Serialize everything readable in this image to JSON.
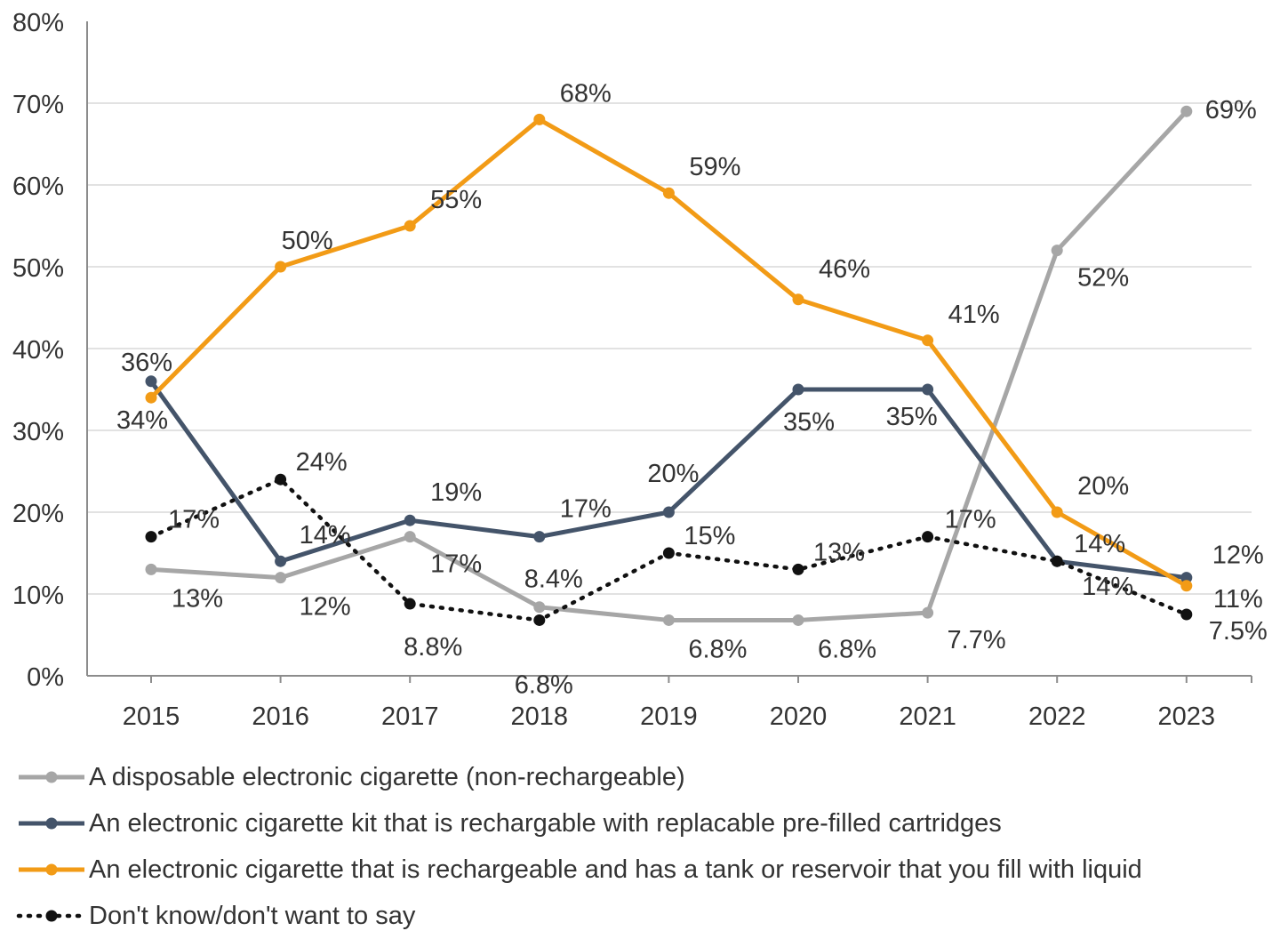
{
  "chart_data": {
    "type": "line",
    "categories": [
      "2015",
      "2016",
      "2017",
      "2018",
      "2019",
      "2020",
      "2021",
      "2022",
      "2023"
    ],
    "y_ticks": [
      "0%",
      "10%",
      "20%",
      "30%",
      "40%",
      "50%",
      "60%",
      "70%",
      "80%"
    ],
    "ylim": [
      0,
      80
    ],
    "grid": true,
    "legend_position": "bottom",
    "series": [
      {
        "name": "A disposable electronic cigarette (non-rechargeable)",
        "color": "#a6a6a6",
        "dash": "solid",
        "values": [
          13,
          12,
          17,
          8.4,
          6.8,
          6.8,
          7.7,
          52,
          69
        ],
        "labels": [
          "13%",
          "12%",
          "17%",
          "8.4%",
          "6.8%",
          "6.8%",
          "7.7%",
          "52%",
          "69%"
        ]
      },
      {
        "name": "An electronic cigarette kit that is rechargable with replacable pre-filled cartridges",
        "color": "#44546a",
        "dash": "solid",
        "values": [
          36,
          14,
          19,
          17,
          20,
          35,
          35,
          14,
          12
        ],
        "labels": [
          "36%",
          "14%",
          "19%",
          "17%",
          "20%",
          "35%",
          "35%",
          "14%",
          "12%"
        ]
      },
      {
        "name": "An electronic cigarette that is rechargeable and has a tank or reservoir that you fill with liquid",
        "color": "#f29b16",
        "dash": "solid",
        "values": [
          34,
          50,
          55,
          68,
          59,
          46,
          41,
          20,
          11
        ],
        "labels": [
          "34%",
          "50%",
          "55%",
          "68%",
          "59%",
          "46%",
          "41%",
          "20%",
          "11%"
        ]
      },
      {
        "name": "Don't know/don't want to say",
        "color": "#111111",
        "dash": "dotted",
        "values": [
          17,
          24,
          8.8,
          6.8,
          15,
          13,
          17,
          14,
          7.5
        ],
        "labels": [
          "17%",
          "24%",
          "8.8%",
          "6.8%",
          "15%",
          "13%",
          "17%",
          "14%",
          "7.5%"
        ]
      }
    ]
  }
}
